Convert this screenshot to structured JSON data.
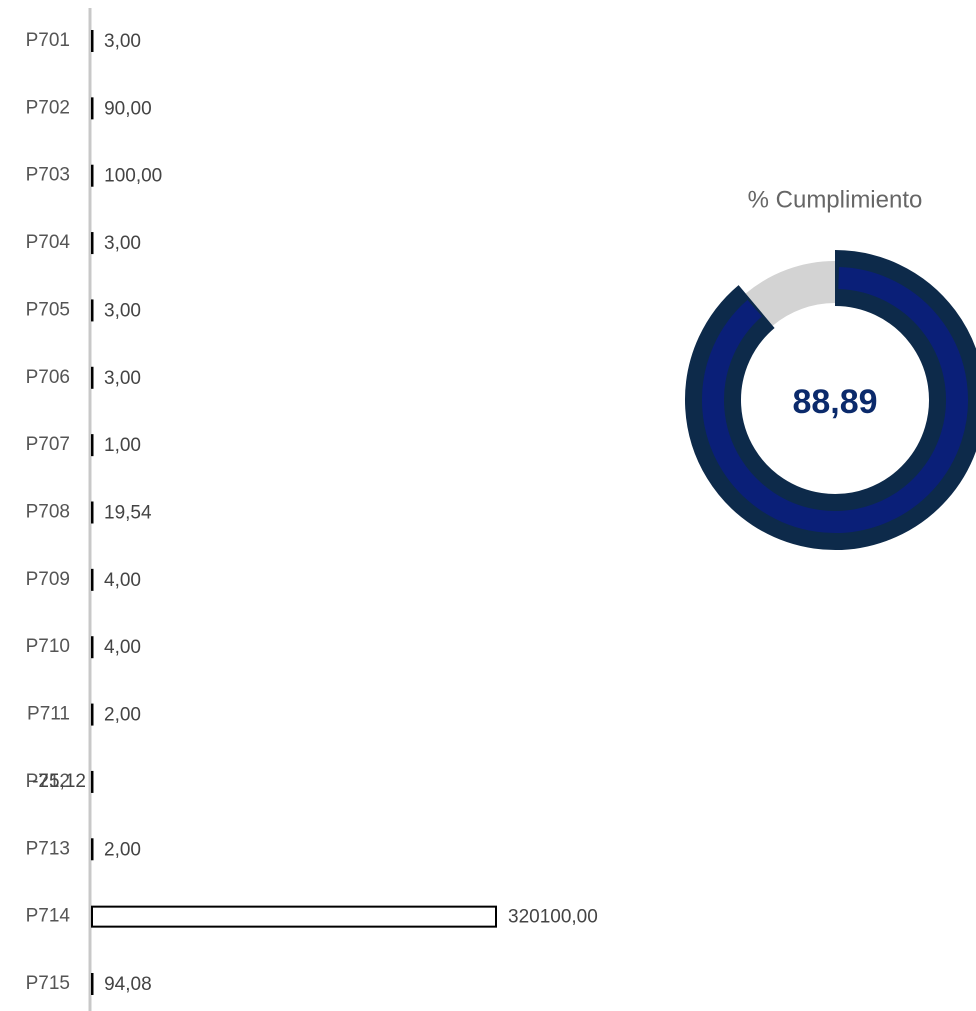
{
  "chart_data": [
    {
      "type": "hbar",
      "categories": [
        "P701",
        "P702",
        "P703",
        "P704",
        "P705",
        "P706",
        "P707",
        "P708",
        "P709",
        "P710",
        "P711",
        "P712",
        "P713",
        "P714",
        "P715"
      ],
      "values": [
        3,
        90,
        100,
        3,
        3,
        3,
        1,
        19.54,
        4,
        4,
        2,
        -25.12,
        2,
        320100,
        94.08
      ],
      "value_labels": [
        "3,00",
        "90,00",
        "100,00",
        "3,00",
        "3,00",
        "3,00",
        "1,00",
        "19,54",
        "4,00",
        "4,00",
        "2,00",
        "-25,12",
        "2,00",
        "320100,00",
        "94,08"
      ],
      "color": "#ffffff"
    },
    {
      "type": "gauge",
      "title": "% Cumplimiento",
      "value": 88.89,
      "value_label": "88,89",
      "ylim": [
        0,
        100
      ],
      "color": "#0d2a4a"
    }
  ]
}
